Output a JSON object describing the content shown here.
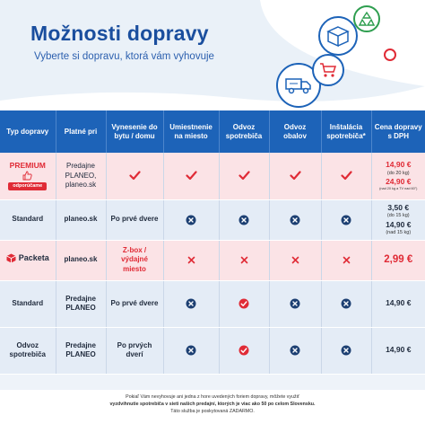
{
  "header": {
    "title": "Možnosti dopravy",
    "subtitle": "Vyberte si dopravu, ktorá vám vyhovuje"
  },
  "icons": [
    "truck-icon",
    "cart-icon",
    "box-icon",
    "recycle-icon"
  ],
  "colors": {
    "brand_blue": "#1d63b8",
    "accent_red": "#e02b36",
    "check_red": "#e02b36",
    "cross_navy": "#1c3f72",
    "row_pink": "#fbe3e6",
    "row_blue": "#e4ecf6"
  },
  "table": {
    "headers": [
      "Typ dopravy",
      "Platné pri",
      "Vynesenie do bytu / domu",
      "Umiestnenie na miesto",
      "Odvoz spotrebiča",
      "Odvoz obalov",
      "Inštalácia spotrebiča*",
      "Cena dopravy s DPH"
    ],
    "rows": [
      {
        "type": "PREMIUM",
        "badge": "odporúčame",
        "valid": "Predajne PLANEO, planeo.sk",
        "delivery": "check",
        "placement": "check",
        "disposal": "check",
        "packaging": "check",
        "install": "check",
        "price1": "14,90 €",
        "price1_note": "(do 20 kg)",
        "price2": "24,90 €",
        "price2_note": "(nad 20 kg a TV nad 60\")"
      },
      {
        "type": "Standard",
        "valid": "planeo.sk",
        "delivery": "Po prvé dvere",
        "placement": "cross",
        "disposal": "cross",
        "packaging": "cross",
        "install": "cross",
        "price1": "3,50 €",
        "price1_note": "(do 15 kg)",
        "price2": "14,90 €",
        "price2_note": "(nad 15 kg)"
      },
      {
        "type": "Packeta",
        "valid": "planeo.sk",
        "delivery": "Z-box / výdajné miesto",
        "placement": "x",
        "disposal": "x",
        "packaging": "x",
        "install": "x",
        "price": "2,99 €"
      },
      {
        "type": "Standard",
        "valid": "Predajne PLANEO",
        "delivery": "Po prvé dvere",
        "placement": "cross",
        "disposal": "check",
        "packaging": "cross",
        "install": "cross",
        "price": "14,90 €"
      },
      {
        "type": "Odvoz spotrebiča",
        "valid": "Predajne PLANEO",
        "delivery": "Po prvých dverí",
        "placement": "cross",
        "disposal": "check",
        "packaging": "cross",
        "install": "cross",
        "price": "14,90 €"
      }
    ]
  },
  "footer": {
    "line1": "Pokiaľ Vám nevyhovuje ani jedna z hore uvedených foriem dopravy, môžete využiť",
    "line2": "vyzdvihnutie spotrebiča v sieti našich predajní, ktorých je viac ako 50 po celom Slovensku.",
    "line3": "Táto služba je poskytovaná ZADARMO."
  }
}
